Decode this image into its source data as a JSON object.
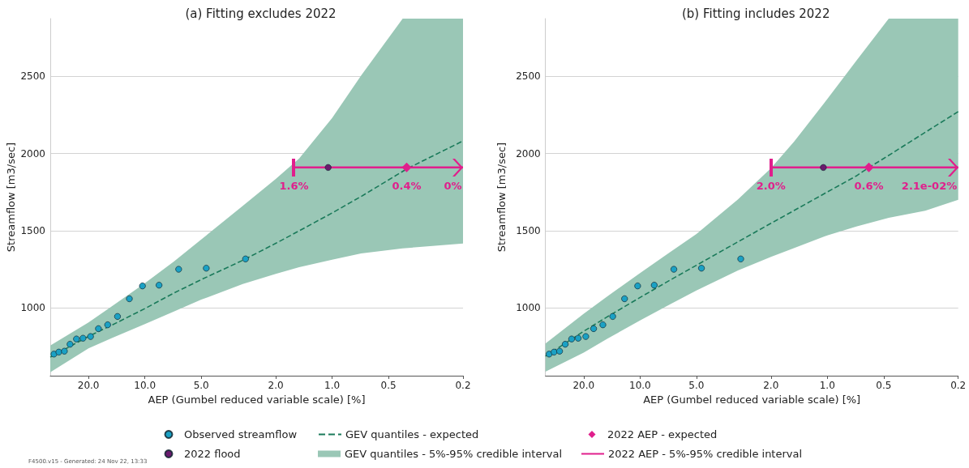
{
  "chart_data": [
    {
      "type": "scatter",
      "title": "(a) Fitting excludes 2022",
      "xlabel": "AEP (Gumbel reduced variable scale) [%]",
      "ylabel": "Streamflow [m3/sec]",
      "xlim": [
        32,
        0.2
      ],
      "xticks": [
        {
          "value": 20,
          "label": "20.0"
        },
        {
          "value": 10,
          "label": "10.0"
        },
        {
          "value": 5,
          "label": "5.0"
        },
        {
          "value": 2,
          "label": "2.0"
        },
        {
          "value": 1,
          "label": "1.0"
        },
        {
          "value": 0.5,
          "label": "0.5"
        },
        {
          "value": 0.2,
          "label": "0.2"
        }
      ],
      "log": "x",
      "ylim": [
        560,
        2875
      ],
      "yticks": [
        1000,
        1500,
        2000,
        2500
      ],
      "grid": "y",
      "legend": "bottom",
      "series": [
        {
          "name": "Observed streamflow",
          "marker": "circle",
          "color": "#1ba1c4",
          "x": [
            30.6,
            28.8,
            26.9,
            25.1,
            23.2,
            21.4,
            19.5,
            17.7,
            15.8,
            14.0,
            12.1,
            10.3,
            8.4,
            6.6,
            4.7,
            2.9
          ],
          "values": [
            700,
            713,
            719,
            764,
            798,
            803,
            814,
            865,
            890,
            944,
            1059,
            1142,
            1147,
            1250,
            1257,
            1317
          ]
        },
        {
          "name": "2022 flood",
          "marker": "circle",
          "color": "#6a1b6e",
          "x": [
            1.05
          ],
          "values": [
            1910
          ]
        },
        {
          "name": "GEV quantiles - expected",
          "type": "line",
          "marker": "none",
          "line_style": "dashed",
          "color": "#1a7a5a",
          "x": [
            32,
            20,
            15,
            10,
            7,
            5,
            3,
            2,
            1.5,
            1,
            0.7,
            0.5,
            0.4,
            0.3,
            0.2
          ],
          "values": [
            680,
            815,
            888,
            995,
            1096,
            1183,
            1308,
            1418,
            1499,
            1615,
            1722,
            1829,
            1900,
            1976,
            2082
          ]
        },
        {
          "name": "GEV quantiles - 5%-95% credible interval",
          "type": "area",
          "color": "#9ac7b6",
          "x": [
            32,
            20,
            15,
            10,
            7,
            5,
            3,
            2,
            1.5,
            1,
            0.7,
            0.42,
            0.3,
            0.2
          ],
          "values": [
            null,
            null,
            null,
            null,
            null,
            null,
            null,
            null,
            null,
            null,
            null,
            null,
            null,
            null
          ],
          "upper": [
            755,
            905,
            1010,
            1160,
            1300,
            1443,
            1661,
            1835,
            1968,
            2230,
            2506,
            2875,
            2875,
            2875
          ],
          "lower": [
            582,
            737,
            804,
            895,
            976,
            1053,
            1154,
            1220,
            1263,
            1312,
            1353,
            1385,
            1400,
            1417
          ]
        },
        {
          "name": "2022 AEP - expected",
          "marker": "diamond",
          "color": "#e01f8c",
          "x": [
            0.4
          ],
          "values": [
            1910
          ]
        },
        {
          "name": "2022 AEP - 5%-95% credible interval",
          "type": "line",
          "marker": "none",
          "line_style": "solid",
          "color": "#e01f8c",
          "x": [
            1.6,
            0.2
          ],
          "values": [
            1910,
            1910
          ]
        }
      ],
      "annotations": [
        {
          "text": "1.6%",
          "x": 1.6,
          "y": 1910
        },
        {
          "text": "0.4%",
          "x": 0.4,
          "y": 1910
        },
        {
          "text": "0%",
          "x": 0.2,
          "y": 1910
        },
        "F4500.v15 - Generated: 24 Nov 22, 13:33"
      ]
    },
    {
      "type": "scatter",
      "title": "(b) Fitting includes 2022",
      "xlabel": "AEP (Gumbel reduced variable scale) [%]",
      "ylabel": "Streamflow [m3/sec]",
      "xlim": [
        32,
        0.2
      ],
      "xticks": [
        {
          "value": 20,
          "label": "20.0"
        },
        {
          "value": 10,
          "label": "10.0"
        },
        {
          "value": 5,
          "label": "5.0"
        },
        {
          "value": 2,
          "label": "2.0"
        },
        {
          "value": 1,
          "label": "1.0"
        },
        {
          "value": 0.5,
          "label": "0.5"
        },
        {
          "value": 0.2,
          "label": "0.2"
        }
      ],
      "log": "x",
      "ylim": [
        560,
        2875
      ],
      "yticks": [
        1000,
        1500,
        2000,
        2500
      ],
      "grid": "y",
      "series": [
        {
          "marker": "circle",
          "color": "#1ba1c4",
          "x": [
            30.6,
            28.8,
            26.9,
            25.1,
            23.2,
            21.4,
            19.5,
            17.7,
            15.8,
            14.0,
            12.1,
            10.3,
            8.4,
            6.6,
            4.7,
            2.9
          ],
          "values": [
            700,
            713,
            719,
            764,
            798,
            803,
            814,
            865,
            890,
            944,
            1059,
            1142,
            1147,
            1250,
            1257,
            1317
          ]
        },
        {
          "marker": "circle",
          "color": "#6a1b6e",
          "x": [
            1.05
          ],
          "values": [
            1910
          ]
        },
        {
          "type": "line",
          "marker": "none",
          "line_style": "dashed",
          "color": "#1a7a5a",
          "x": [
            32,
            20,
            15,
            10,
            7,
            5,
            3,
            2,
            1.5,
            1,
            0.7,
            0.6,
            0.5,
            0.3,
            0.2
          ],
          "values": [
            687,
            848,
            941,
            1067,
            1176,
            1276,
            1428,
            1548,
            1632,
            1751,
            1855,
            1910,
            1968,
            2138,
            2272
          ]
        },
        {
          "type": "area",
          "color": "#9ac7b6",
          "x": [
            32,
            20,
            15,
            10,
            7,
            5,
            3,
            2,
            1.5,
            1,
            0.7,
            0.47,
            0.3,
            0.2
          ],
          "values": [
            null,
            null,
            null,
            null,
            null,
            null,
            null,
            null,
            null,
            null,
            null,
            null,
            null,
            null
          ],
          "upper": [
            769,
            961,
            1073,
            1225,
            1356,
            1479,
            1703,
            1905,
            2080,
            2354,
            2602,
            2875,
            2875,
            2875
          ],
          "lower": [
            586,
            710,
            799,
            918,
            1019,
            1112,
            1243,
            1330,
            1388,
            1470,
            1527,
            1583,
            1630,
            1700
          ]
        },
        {
          "marker": "diamond",
          "color": "#e01f8c",
          "x": [
            0.6
          ],
          "values": [
            1910
          ]
        },
        {
          "type": "line",
          "marker": "none",
          "line_style": "solid",
          "color": "#e01f8c",
          "x": [
            2.0,
            0.2
          ],
          "values": [
            1910,
            1910
          ]
        }
      ],
      "annotations": [
        {
          "text": "2.0%",
          "x": 2.0,
          "y": 1910
        },
        {
          "text": "0.6%",
          "x": 0.6,
          "y": 1910
        },
        {
          "text": "2.1e-02%",
          "x": 0.2,
          "y": 1910
        }
      ]
    }
  ]
}
